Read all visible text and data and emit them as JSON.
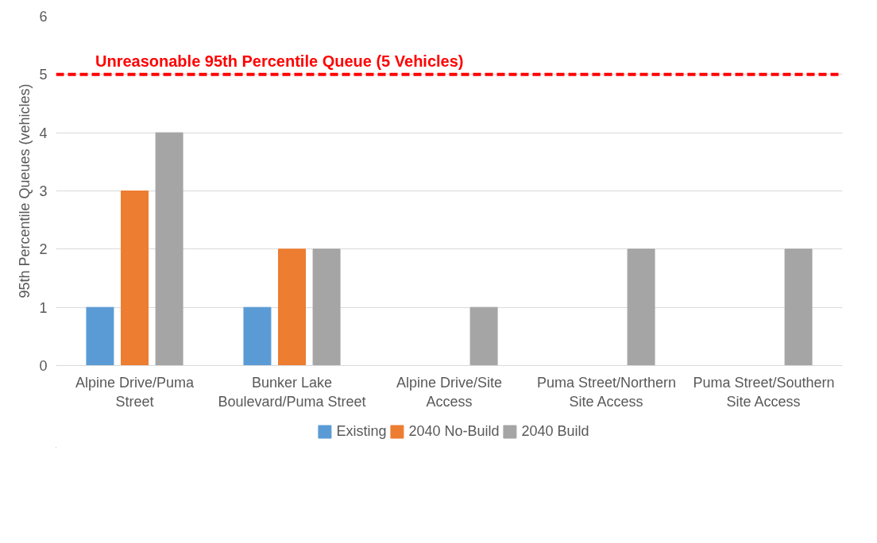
{
  "chart_data": {
    "type": "bar",
    "ylabel": "95th Percentile Queues (vehicles)",
    "categories": [
      "Alpine Drive/Puma Street",
      "Bunker Lake Boulevard/Puma Street",
      "Alpine Drive/Site Access",
      "Puma Street/Northern Site Access",
      "Puma Street/Southern Site Access"
    ],
    "series": [
      {
        "name": "Existing",
        "color": "#5b9bd5",
        "values": [
          1,
          1,
          null,
          null,
          null
        ]
      },
      {
        "name": "2040 No-Build",
        "color": "#ed7d31",
        "values": [
          3,
          2,
          null,
          null,
          null
        ]
      },
      {
        "name": "2040 Build",
        "color": "#a5a5a5",
        "values": [
          4,
          2,
          1,
          2,
          2
        ]
      }
    ],
    "ylim": [
      0,
      6
    ],
    "yticks": [
      0,
      1,
      2,
      3,
      4,
      5,
      6
    ],
    "grid": "y",
    "legend": "bottom",
    "ref_lines": [
      {
        "axis": "y",
        "value": 5,
        "label": "Unreasonable 95th Percentile Queue (5 Vehicles)",
        "color": "#ff0000",
        "line_style": "dashed"
      }
    ]
  }
}
